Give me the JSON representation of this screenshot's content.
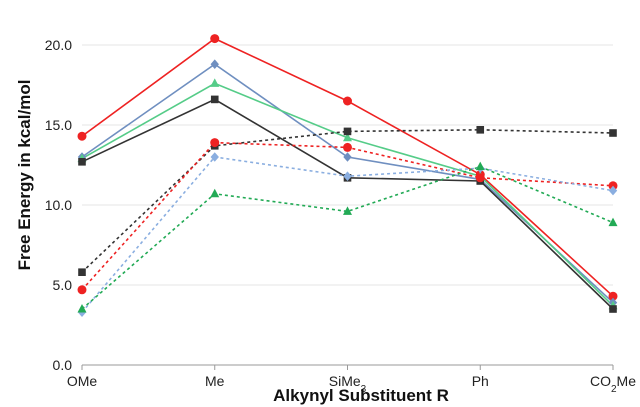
{
  "chart_data": {
    "type": "line",
    "title": "",
    "xlabel": "Alkynyl Substituent R",
    "ylabel": "Free Energy in kcal/mol",
    "categories": [
      "OMe",
      "Me",
      "SiMe",
      "Ph",
      "CO"
    ],
    "category_subscripts": [
      "",
      "",
      "3",
      "",
      "2"
    ],
    "category_suffixes": [
      "",
      "",
      "",
      "",
      "Me"
    ],
    "ylim": [
      0,
      22
    ],
    "yticks": [
      "0.0",
      "5.0",
      "10.0",
      "15.0",
      "20.0"
    ],
    "ytick_values": [
      0,
      5,
      10,
      15,
      20
    ],
    "grid": "horizontal",
    "legend": "none",
    "series": [
      {
        "color": "#ee2222",
        "marker": "circle",
        "dash": "solid",
        "values": [
          14.3,
          20.4,
          16.5,
          11.9,
          4.3
        ]
      },
      {
        "color": "#6f8fc0",
        "marker": "diamond",
        "dash": "solid",
        "values": [
          13.0,
          18.8,
          13.0,
          11.6,
          3.9
        ]
      },
      {
        "color": "#55cc88",
        "marker": "triangle",
        "dash": "solid",
        "values": [
          12.9,
          17.6,
          14.2,
          11.8,
          3.7
        ]
      },
      {
        "color": "#333333",
        "marker": "square",
        "dash": "solid",
        "values": [
          12.7,
          16.6,
          11.7,
          11.5,
          3.5
        ]
      },
      {
        "color": "#333333",
        "marker": "square",
        "dash": "dotted",
        "values": [
          5.8,
          13.7,
          14.6,
          14.7,
          14.5
        ]
      },
      {
        "color": "#ee2222",
        "marker": "circle",
        "dash": "dotted",
        "values": [
          4.7,
          13.9,
          13.6,
          11.7,
          11.2
        ]
      },
      {
        "color": "#8aaee0",
        "marker": "diamond",
        "dash": "dotted",
        "values": [
          3.3,
          13.0,
          11.8,
          12.3,
          10.9
        ]
      },
      {
        "color": "#22aa55",
        "marker": "triangle",
        "dash": "dotted",
        "values": [
          3.5,
          10.7,
          9.6,
          12.4,
          8.9
        ]
      }
    ]
  }
}
